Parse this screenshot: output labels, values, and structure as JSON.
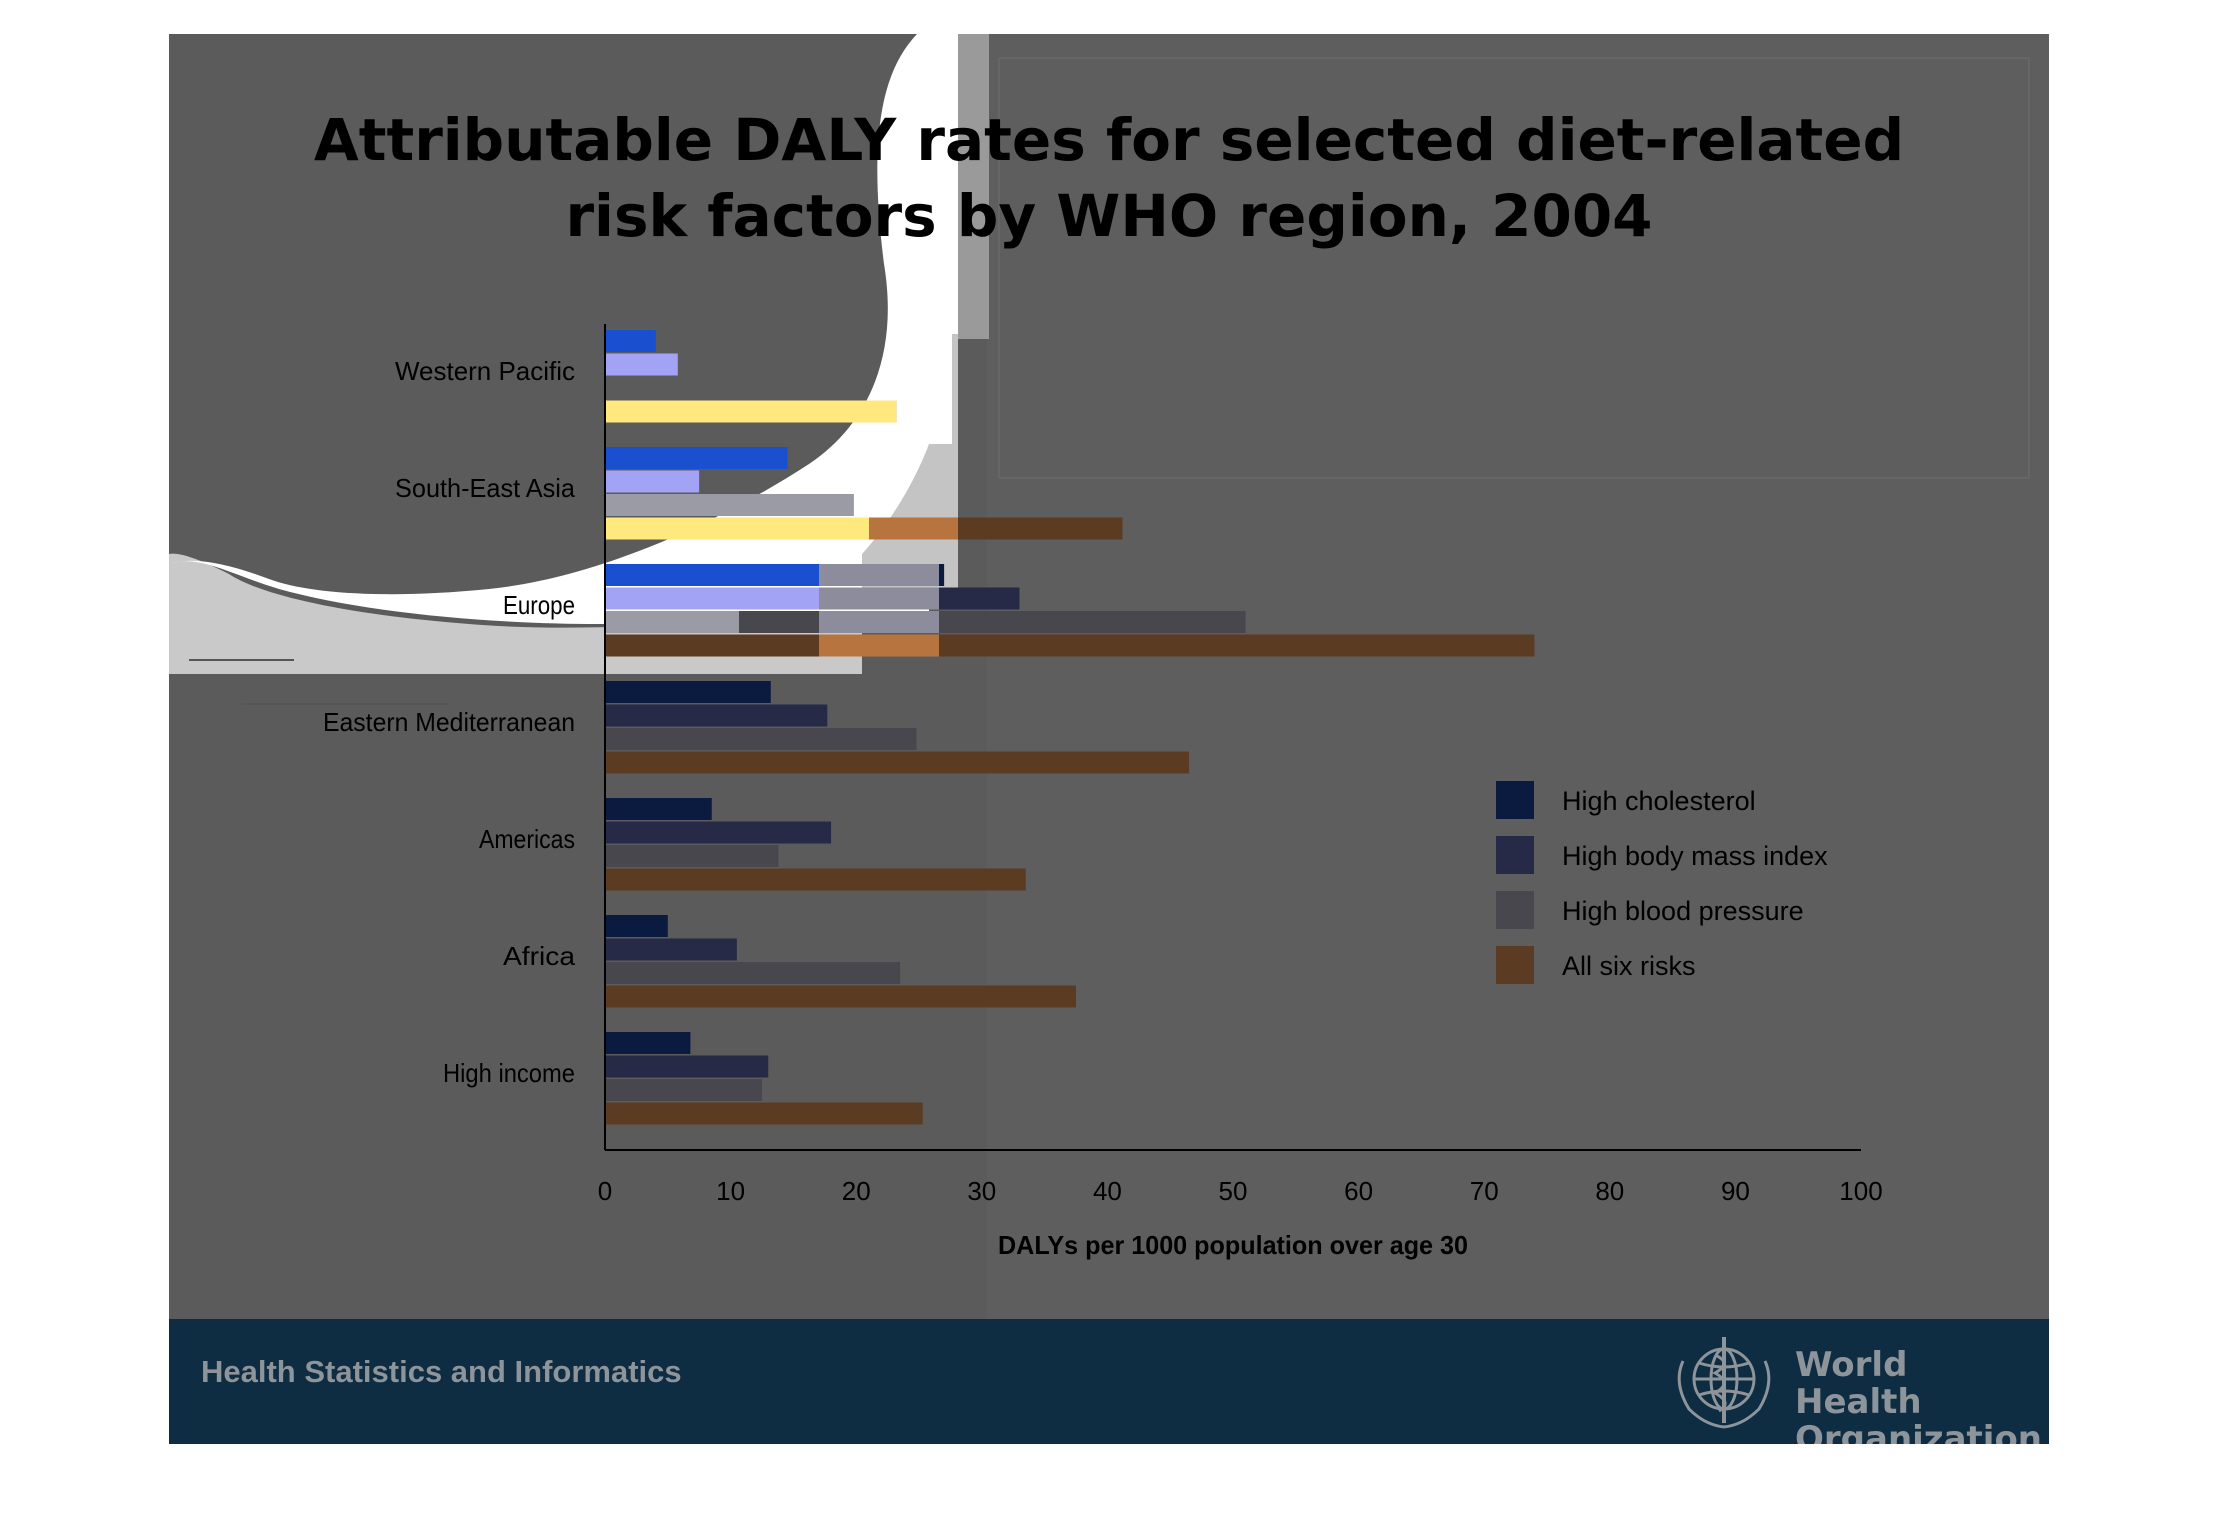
{
  "title": {
    "line1": "Attributable DALY rates for selected diet-related",
    "line2": "risk factors by WHO region, 2004"
  },
  "colors": {
    "slide_background": "#5b5b5b",
    "footer_background": "#0e2c42",
    "white_panel": "#ffffff",
    "grey_panel": "#c4c4c4",
    "high_cholesterol": "#0b1b40",
    "high_body_mass_index": "#272a47",
    "high_blood_pressure": "#47474d",
    "all_six_risks": "#5b3c22",
    "high_cholesterol_on_white": "#1a4fd0",
    "high_body_mass_index_on_white": "#a3a3f6",
    "high_blood_pressure_on_white": "#9b9ba6",
    "all_six_risks_on_white": "#ffe97f",
    "axis_text": "#000000"
  },
  "chart_data": {
    "type": "bar",
    "orientation": "horizontal",
    "title": "Attributable DALY rates for selected diet-related risk factors by WHO region, 2004",
    "categories": [
      "Western Pacific",
      "South-East Asia",
      "Europe",
      "Eastern Mediterranean",
      "Americas",
      "Africa",
      "High income"
    ],
    "series": [
      {
        "name": "High cholesterol",
        "values": [
          4,
          14.5,
          27,
          13.2,
          8.5,
          5,
          6.8
        ]
      },
      {
        "name": "High body mass index",
        "values": [
          5.8,
          7.5,
          33,
          17.7,
          18,
          10.5,
          13
        ]
      },
      {
        "name": "High blood pressure",
        "values": [
          0,
          19.8,
          51,
          24.8,
          13.8,
          23.5,
          12.5
        ]
      },
      {
        "name": "All six risks",
        "values": [
          23.2,
          41.2,
          74,
          46.5,
          33.5,
          37.5,
          25.3
        ]
      }
    ],
    "xlabel": "DALYs per 1000 population over age 30",
    "ylabel": "",
    "xlim": [
      0,
      100
    ],
    "xticks": [
      "0",
      "10",
      "20",
      "30",
      "40",
      "50",
      "60",
      "70",
      "80",
      "90",
      "100"
    ],
    "grid": false,
    "legend_position": "right"
  },
  "footer": {
    "left_text": "Health Statistics and Informatics",
    "org_line1": "World Health",
    "org_line2": "Organization"
  }
}
